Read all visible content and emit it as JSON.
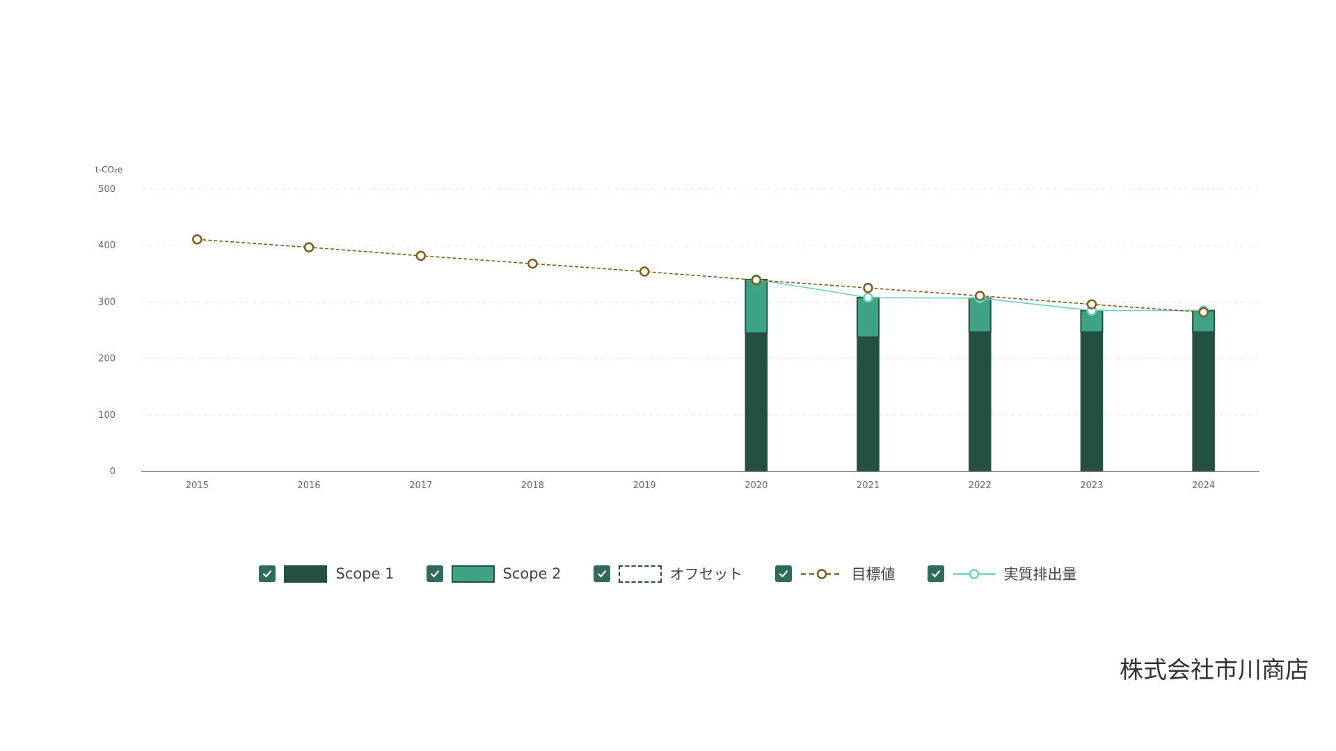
{
  "chart_data": {
    "type": "bar",
    "unit_label": "t-CO₂e",
    "categories": [
      "2015",
      "2016",
      "2017",
      "2018",
      "2019",
      "2020",
      "2021",
      "2022",
      "2023",
      "2024"
    ],
    "ylim": [
      0,
      500
    ],
    "yticks": [
      0,
      100,
      200,
      300,
      400,
      500
    ],
    "grid": true,
    "legend_position": "bottom",
    "series": [
      {
        "name": "Scope 1",
        "kind": "bar",
        "stack": true,
        "color": "#23503f",
        "values": [
          null,
          null,
          null,
          null,
          null,
          245,
          238,
          247,
          247,
          247
        ]
      },
      {
        "name": "Scope 2",
        "kind": "bar",
        "stack": true,
        "color": "#3fa386",
        "values": [
          null,
          null,
          null,
          null,
          null,
          95,
          70,
          60,
          38,
          38
        ]
      },
      {
        "name": "オフセット",
        "kind": "bar",
        "stack": true,
        "color": "#23503f",
        "values": [
          null,
          null,
          null,
          null,
          null,
          null,
          null,
          null,
          null,
          null
        ]
      },
      {
        "name": "目標値",
        "kind": "line",
        "style": "dashed",
        "color": "#7a5c1e",
        "values": [
          411,
          397,
          382,
          368,
          354,
          339,
          325,
          311,
          296,
          282
        ]
      },
      {
        "name": "実質排出量",
        "kind": "line",
        "style": "solid",
        "color": "#6fd0bd",
        "values": [
          null,
          null,
          null,
          null,
          null,
          340,
          308,
          307,
          285,
          285
        ]
      }
    ]
  },
  "legend": {
    "items": [
      {
        "label": "Scope 1",
        "checked": true
      },
      {
        "label": "Scope 2",
        "checked": true
      },
      {
        "label": "オフセット",
        "checked": true
      },
      {
        "label": "目標値",
        "checked": true
      },
      {
        "label": "実質排出量",
        "checked": true
      }
    ]
  },
  "footer": {
    "company": "株式会社市川商店"
  },
  "colors": {
    "scope1": "#23503f",
    "scope2": "#3fa386",
    "target": "#7a5c1e",
    "actual": "#6fd0bd",
    "checkbox": "#2e6b5c",
    "grid": "#e6e6e6",
    "axis": "#777777"
  }
}
